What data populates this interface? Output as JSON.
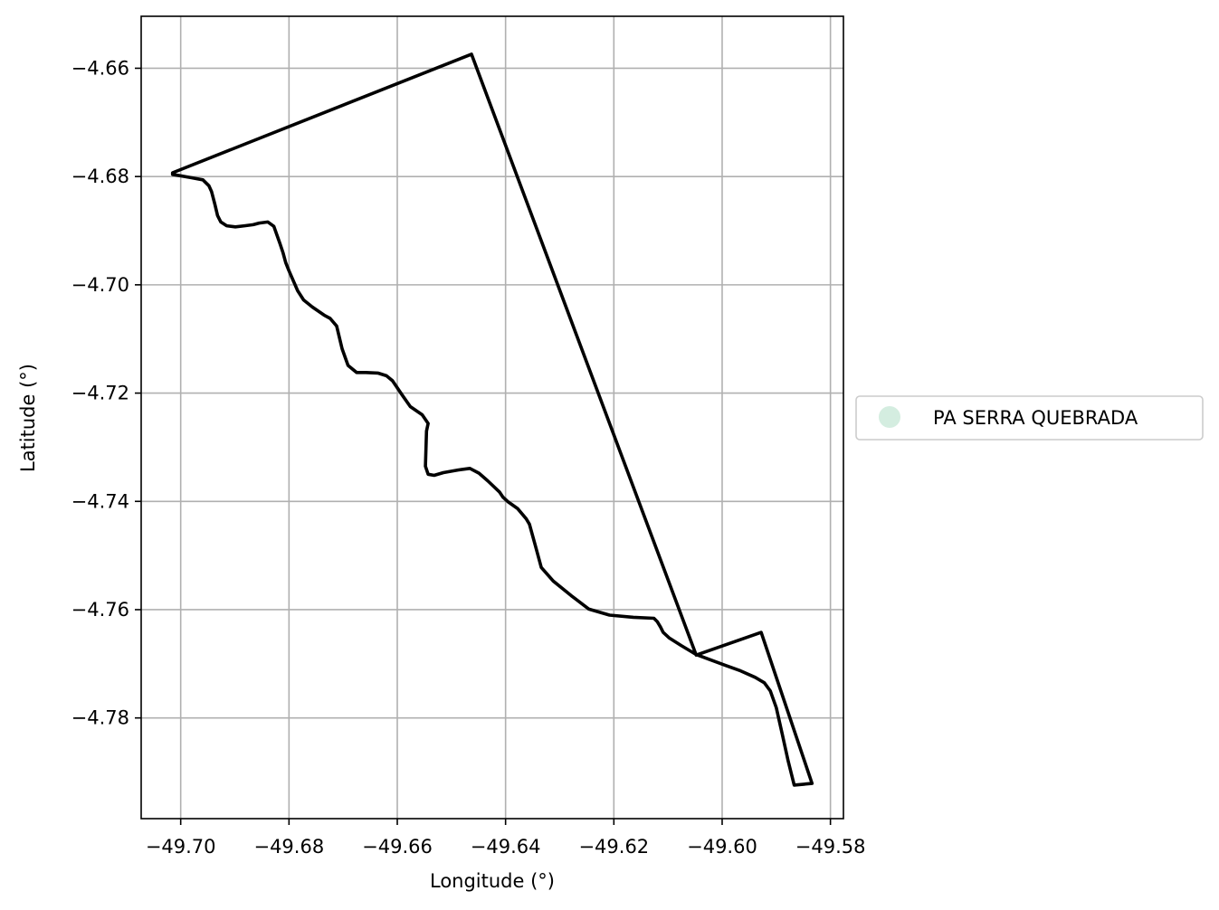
{
  "chart_data": {
    "type": "map",
    "xlabel": "Longitude (°)",
    "ylabel": "Latitude (°)",
    "xlim": [
      -49.7073,
      -49.5776
    ],
    "ylim": [
      -4.7986,
      -4.6504
    ],
    "grid": true,
    "x_ticks": [
      {
        "value": -49.7,
        "label": "−49.70"
      },
      {
        "value": -49.68,
        "label": "−49.68"
      },
      {
        "value": -49.66,
        "label": "−49.66"
      },
      {
        "value": -49.64,
        "label": "−49.64"
      },
      {
        "value": -49.62,
        "label": "−49.62"
      },
      {
        "value": -49.6,
        "label": "−49.60"
      },
      {
        "value": -49.58,
        "label": "−49.58"
      }
    ],
    "y_ticks": [
      {
        "value": -4.66,
        "label": "−4.66"
      },
      {
        "value": -4.68,
        "label": "−4.68"
      },
      {
        "value": -4.7,
        "label": "−4.70"
      },
      {
        "value": -4.72,
        "label": "−4.72"
      },
      {
        "value": -4.74,
        "label": "−4.74"
      },
      {
        "value": -4.76,
        "label": "−4.76"
      },
      {
        "value": -4.78,
        "label": "−4.78"
      }
    ],
    "legend": {
      "placement": "center-right-outside",
      "entries": [
        {
          "label": "PA SERRA QUEBRADA",
          "color": "#d4ede0",
          "marker": "circle"
        }
      ]
    },
    "series": [
      {
        "line_color": "#000000",
        "points": [
          [
            -49.7015,
            -4.6793
          ],
          [
            -49.6463,
            -4.6574
          ],
          [
            -49.6048,
            -4.7684
          ],
          [
            -49.5928,
            -4.7642
          ],
          [
            -49.5834,
            -4.7921
          ],
          [
            -49.5867,
            -4.7924
          ],
          [
            -49.5878,
            -4.788
          ],
          [
            -49.5889,
            -4.783
          ],
          [
            -49.59,
            -4.7781
          ],
          [
            -49.5911,
            -4.775
          ],
          [
            -49.5922,
            -4.7735
          ],
          [
            -49.5939,
            -4.7725
          ],
          [
            -49.5966,
            -4.7713
          ],
          [
            -49.5994,
            -4.7703
          ],
          [
            -49.6021,
            -4.7693
          ],
          [
            -49.6048,
            -4.7683
          ],
          [
            -49.6076,
            -4.7666
          ],
          [
            -49.6098,
            -4.7652
          ],
          [
            -49.6109,
            -4.7642
          ],
          [
            -49.6114,
            -4.7632
          ],
          [
            -49.612,
            -4.7622
          ],
          [
            -49.6126,
            -4.7616
          ],
          [
            -49.6164,
            -4.7614
          ],
          [
            -49.6208,
            -4.761
          ],
          [
            -49.6246,
            -4.7599
          ],
          [
            -49.6279,
            -4.7574
          ],
          [
            -49.6312,
            -4.7547
          ],
          [
            -49.6334,
            -4.7522
          ],
          [
            -49.6345,
            -4.7482
          ],
          [
            -49.6356,
            -4.7442
          ],
          [
            -49.6362,
            -4.7432
          ],
          [
            -49.6378,
            -4.7413
          ],
          [
            -49.6395,
            -4.7401
          ],
          [
            -49.6405,
            -4.7392
          ],
          [
            -49.6411,
            -4.7383
          ],
          [
            -49.6433,
            -4.7362
          ],
          [
            -49.6449,
            -4.7348
          ],
          [
            -49.6466,
            -4.7339
          ],
          [
            -49.6488,
            -4.7342
          ],
          [
            -49.6515,
            -4.7347
          ],
          [
            -49.6532,
            -4.7352
          ],
          [
            -49.6543,
            -4.735
          ],
          [
            -49.6548,
            -4.7335
          ],
          [
            -49.6546,
            -4.727
          ],
          [
            -49.6543,
            -4.7256
          ],
          [
            -49.6554,
            -4.724
          ],
          [
            -49.6576,
            -4.7225
          ],
          [
            -49.659,
            -4.7205
          ],
          [
            -49.6609,
            -4.7177
          ],
          [
            -49.662,
            -4.7168
          ],
          [
            -49.6636,
            -4.7163
          ],
          [
            -49.6658,
            -4.7162
          ],
          [
            -49.6675,
            -4.7162
          ],
          [
            -49.6691,
            -4.7149
          ],
          [
            -49.6702,
            -4.7118
          ],
          [
            -49.6712,
            -4.7076
          ],
          [
            -49.6724,
            -4.7062
          ],
          [
            -49.6735,
            -4.7056
          ],
          [
            -49.6757,
            -4.7041
          ],
          [
            -49.6773,
            -4.7028
          ],
          [
            -49.6784,
            -4.7011
          ],
          [
            -49.68,
            -4.6974
          ],
          [
            -49.6806,
            -4.6959
          ],
          [
            -49.6811,
            -4.6941
          ],
          [
            -49.6817,
            -4.6923
          ],
          [
            -49.6822,
            -4.6909
          ],
          [
            -49.6828,
            -4.6892
          ],
          [
            -49.6839,
            -4.6884
          ],
          [
            -49.6855,
            -4.6886
          ],
          [
            -49.6866,
            -4.6889
          ],
          [
            -49.6882,
            -4.6891
          ],
          [
            -49.6899,
            -4.6893
          ],
          [
            -49.6915,
            -4.6891
          ],
          [
            -49.6926,
            -4.6884
          ],
          [
            -49.6932,
            -4.6872
          ],
          [
            -49.6937,
            -4.6851
          ],
          [
            -49.6943,
            -4.6828
          ],
          [
            -49.6948,
            -4.6817
          ],
          [
            -49.6959,
            -4.6806
          ],
          [
            -49.6981,
            -4.6802
          ],
          [
            -49.7015,
            -4.6796
          ]
        ]
      }
    ]
  }
}
